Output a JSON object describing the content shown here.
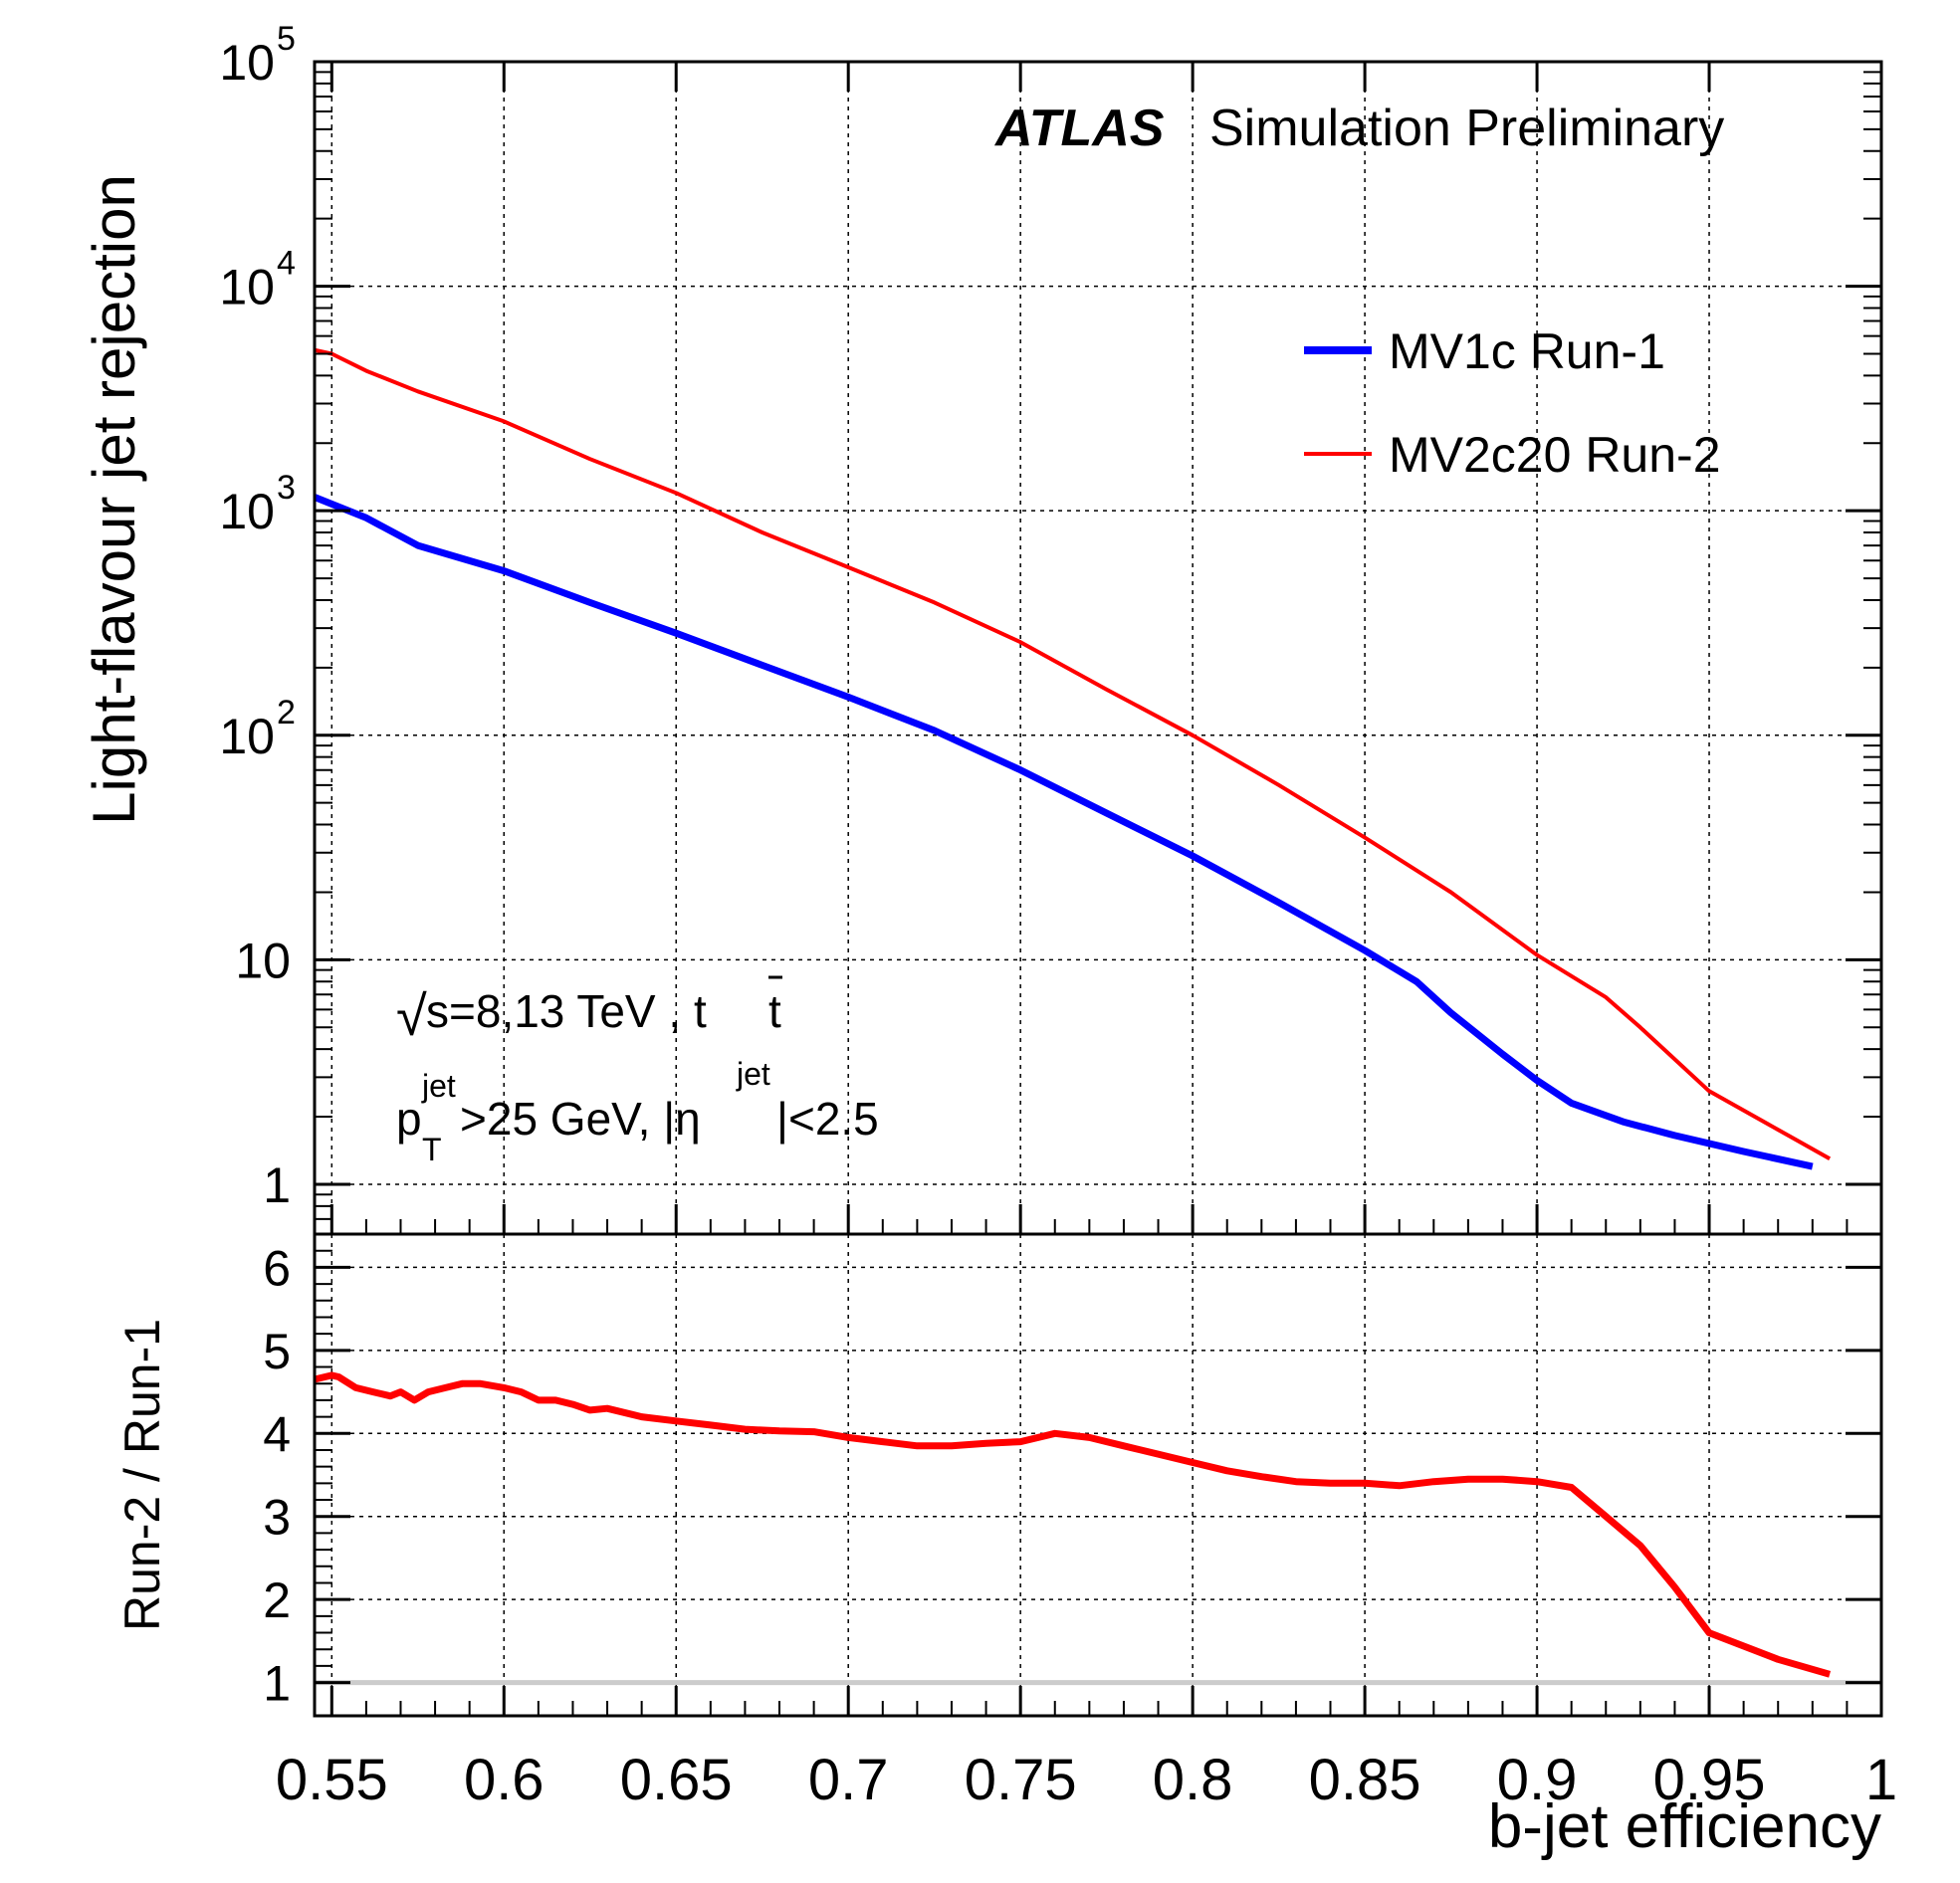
{
  "chart_data": [
    {
      "type": "line",
      "panel": "main",
      "ylabel": "Light-flavour jet rejection",
      "yscale": "log",
      "ylim": [
        0.6,
        100000
      ],
      "xlim": [
        0.545,
        1.0
      ],
      "grid": true,
      "ytick_labels": [
        {
          "value": 1,
          "text": "1"
        },
        {
          "value": 10,
          "text": "10"
        },
        {
          "value": 100,
          "base": "10",
          "exp": "2"
        },
        {
          "value": 1000,
          "base": "10",
          "exp": "3"
        },
        {
          "value": 10000,
          "base": "10",
          "exp": "4"
        },
        {
          "value": 100000,
          "base": "10",
          "exp": "5"
        }
      ],
      "annotations": {
        "atlas": "ATLAS",
        "atlas_suffix": "Simulation Preliminary",
        "energy_root": "√",
        "energy_text": "s=8,13 TeV , t",
        "energy_tbar": "t",
        "cut_p": "p",
        "cut_p_sub": "T",
        "cut_p_sup": "jet",
        "cut_mid": ">25 GeV, |η",
        "cut_eta_sup": "jet",
        "cut_end": "|<2.5"
      },
      "legend_position": "top-right",
      "series": [
        {
          "name": "MV1c Run-1",
          "color": "#0000ff",
          "x": [
            0.545,
            0.56,
            0.575,
            0.6,
            0.625,
            0.65,
            0.675,
            0.7,
            0.725,
            0.75,
            0.775,
            0.8,
            0.825,
            0.85,
            0.865,
            0.875,
            0.89,
            0.9,
            0.91,
            0.925,
            0.94,
            0.96,
            0.98
          ],
          "y": [
            1150,
            930,
            700,
            540,
            390,
            285,
            205,
            148,
            105,
            70,
            45,
            29,
            18,
            11,
            8,
            5.8,
            3.8,
            2.9,
            2.3,
            1.9,
            1.65,
            1.4,
            1.2
          ]
        },
        {
          "name": "MV2c20 Run-2",
          "color": "#ff0000",
          "x": [
            0.545,
            0.55,
            0.56,
            0.575,
            0.6,
            0.625,
            0.65,
            0.675,
            0.7,
            0.725,
            0.75,
            0.775,
            0.8,
            0.825,
            0.85,
            0.875,
            0.9,
            0.92,
            0.93,
            0.95,
            0.97,
            0.985
          ],
          "y": [
            5200,
            5000,
            4200,
            3400,
            2500,
            1700,
            1200,
            800,
            560,
            390,
            260,
            160,
            100,
            60,
            35,
            20,
            10.5,
            6.8,
            5,
            2.6,
            1.75,
            1.3
          ]
        }
      ]
    },
    {
      "type": "line",
      "panel": "ratio",
      "ylabel": "Run-2 / Run-1",
      "xlabel": "b-jet efficiency",
      "ylim": [
        0.6,
        6.4
      ],
      "xlim": [
        0.545,
        1.0
      ],
      "grid": true,
      "reference_line": 1,
      "ytick_labels": [
        "1",
        "2",
        "3",
        "4",
        "5",
        "6"
      ],
      "xtick_labels": [
        "0.55",
        "0.6",
        "0.65",
        "0.7",
        "0.75",
        "0.8",
        "0.85",
        "0.9",
        "0.95",
        "1"
      ],
      "series": [
        {
          "name": "",
          "color": "#ff0000",
          "x": [
            0.545,
            0.55,
            0.552,
            0.557,
            0.562,
            0.567,
            0.57,
            0.574,
            0.578,
            0.583,
            0.588,
            0.593,
            0.6,
            0.605,
            0.61,
            0.615,
            0.62,
            0.625,
            0.63,
            0.64,
            0.65,
            0.66,
            0.67,
            0.68,
            0.69,
            0.7,
            0.71,
            0.72,
            0.73,
            0.74,
            0.75,
            0.76,
            0.77,
            0.78,
            0.79,
            0.8,
            0.81,
            0.82,
            0.83,
            0.84,
            0.85,
            0.86,
            0.87,
            0.88,
            0.89,
            0.9,
            0.91,
            0.92,
            0.93,
            0.94,
            0.95,
            0.97,
            0.985
          ],
          "y": [
            4.65,
            4.7,
            4.68,
            4.55,
            4.5,
            4.45,
            4.5,
            4.4,
            4.5,
            4.55,
            4.6,
            4.6,
            4.55,
            4.5,
            4.4,
            4.4,
            4.35,
            4.28,
            4.3,
            4.2,
            4.15,
            4.1,
            4.05,
            4.03,
            4.02,
            3.95,
            3.9,
            3.85,
            3.85,
            3.88,
            3.9,
            4.0,
            3.95,
            3.85,
            3.75,
            3.65,
            3.55,
            3.48,
            3.42,
            3.4,
            3.4,
            3.37,
            3.42,
            3.45,
            3.45,
            3.42,
            3.35,
            3.0,
            2.65,
            2.15,
            1.6,
            1.28,
            1.1
          ]
        }
      ]
    }
  ]
}
